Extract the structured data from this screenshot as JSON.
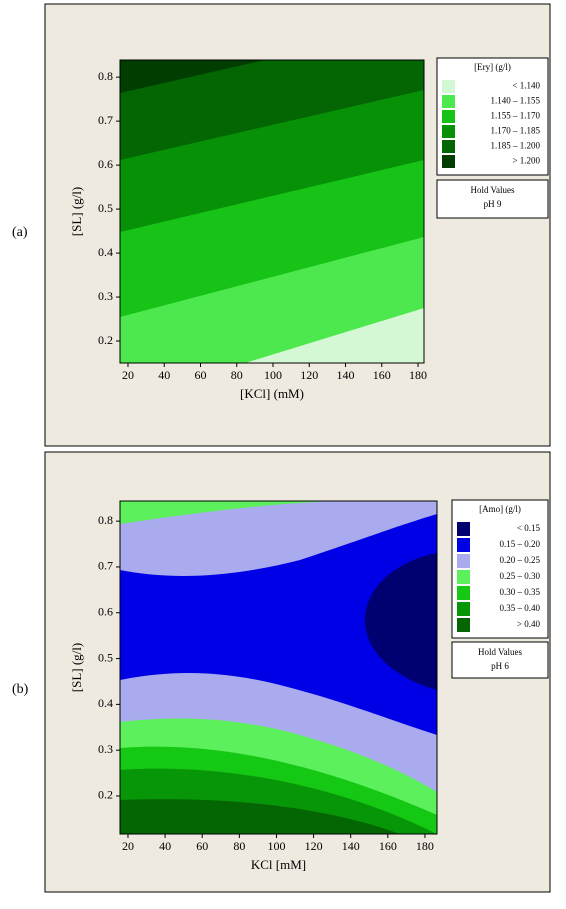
{
  "chart_data": [
    {
      "type": "contour",
      "panel_label": "(a)",
      "x_label": "[KCl] (mM)",
      "y_label": "[SL] (g/l)",
      "xlim": [
        15.6,
        183.3
      ],
      "xticks": [
        20,
        40,
        60,
        80,
        100,
        120,
        140,
        160,
        180
      ],
      "ylim": [
        0.15,
        0.839
      ],
      "yticks": [
        0.2,
        0.3,
        0.4,
        0.5,
        0.6,
        0.7,
        0.8
      ],
      "legend_title": "[Ery] (g/l)",
      "levels": [
        {
          "label": "< 1.140",
          "color": "#d4f7d4"
        },
        {
          "label": "1.140 – 1.155",
          "color": "#4de84d"
        },
        {
          "label": "1.155 – 1.170",
          "color": "#17c317"
        },
        {
          "label": "1.170 – 1.185",
          "color": "#069106"
        },
        {
          "label": "1.185 – 1.200",
          "color": "#036603"
        },
        {
          "label": "> 1.200",
          "color": "#013d01"
        }
      ],
      "hold_title": "Hold Values",
      "hold_value": "pH 9"
    },
    {
      "type": "contour",
      "panel_label": "(b)",
      "x_label": "KCl [mM]",
      "y_label": "[SL] (g/l)",
      "xlim": [
        15.7,
        186.5
      ],
      "xticks": [
        20,
        40,
        60,
        80,
        100,
        120,
        140,
        160,
        180
      ],
      "ylim": [
        0.117,
        0.844
      ],
      "yticks": [
        0.2,
        0.3,
        0.4,
        0.5,
        0.6,
        0.7,
        0.8
      ],
      "legend_title": "[Amo] (g/l)",
      "levels": [
        {
          "label": "< 0.15",
          "color": "#000070"
        },
        {
          "label": "0.15 – 0.20",
          "color": "#0000e6"
        },
        {
          "label": "0.20 – 0.25",
          "color": "#aaaaee"
        },
        {
          "label": "0.25 – 0.30",
          "color": "#5cf05c"
        },
        {
          "label": "0.30 – 0.35",
          "color": "#14c814"
        },
        {
          "label": "0.35 – 0.40",
          "color": "#079607"
        },
        {
          "label": "> 0.40",
          "color": "#036603"
        }
      ],
      "hold_title": "Hold Values",
      "hold_value": "pH 6"
    }
  ]
}
